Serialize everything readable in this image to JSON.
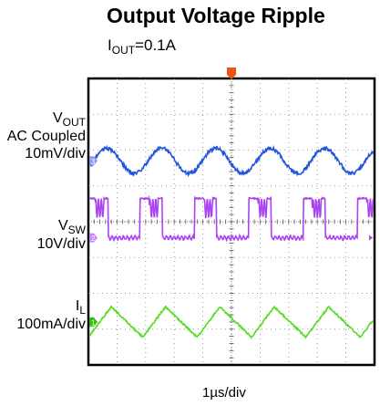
{
  "chart_data": {
    "type": "line",
    "title": "Output Voltage Ripple",
    "subtitle": {
      "prefix": "I",
      "sub": "OUT",
      "suffix": "=0.1A"
    },
    "xlabel": "1µs/div",
    "grid": true,
    "x_divisions": 10,
    "y_divisions": 8,
    "channels": [
      {
        "id": "3",
        "name_main": "V",
        "name_sub": "OUT",
        "lines": [
          "AC Coupled",
          "10mV/div"
        ],
        "color": "#2255dd",
        "marker": "#8899ee",
        "baseline_div": 2.3,
        "shape": "sine",
        "period_div": 1.9,
        "peak_to_peak_div": 0.7
      },
      {
        "id": "2",
        "name_main": "V",
        "name_sub": "SW",
        "lines": [
          "10V/div"
        ],
        "color": "#aa44ee",
        "marker": "#cc88ff",
        "baseline_div": 4.45,
        "shape": "switching",
        "period_div": 1.9,
        "high_div": 1.1
      },
      {
        "id": "1",
        "name_main": "I",
        "name_sub": "L",
        "lines": [
          "100mA/div"
        ],
        "color": "#55dd22",
        "marker": "#33bb11",
        "baseline_div": 6.8,
        "shape": "sawtooth",
        "period_div": 1.9,
        "peak_to_peak_div": 0.85
      }
    ]
  }
}
